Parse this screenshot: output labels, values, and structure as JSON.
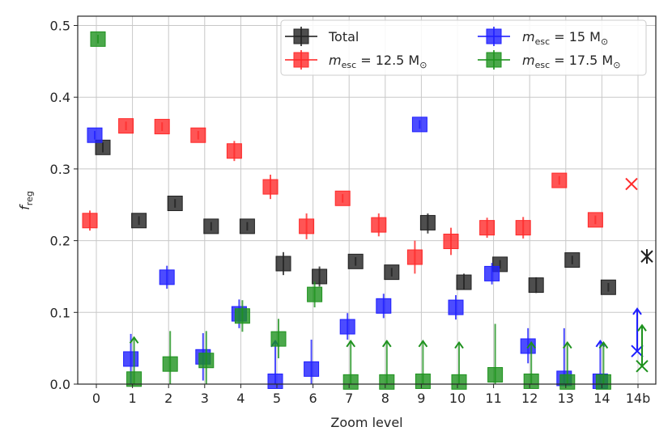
{
  "chart_data": {
    "type": "scatter",
    "xlabel": "Zoom level",
    "ylabel_main": "f",
    "ylabel_sub": "reg",
    "ylim": [
      0,
      0.5
    ],
    "categories": [
      "0",
      "1",
      "2",
      "3",
      "4",
      "5",
      "6",
      "7",
      "8",
      "9",
      "10",
      "11",
      "12",
      "13",
      "14",
      "14b"
    ],
    "yticks": [
      "0.0",
      "0.1",
      "0.2",
      "0.3",
      "0.4",
      "0.5"
    ],
    "grid": true,
    "legend_position": "top-right",
    "legend": [
      {
        "key": "total",
        "label": "Total"
      },
      {
        "key": "m15",
        "label_main": "m",
        "label_sub": "esc",
        "label_rest": " = 15 M",
        "label_sym": "⊙"
      },
      {
        "key": "m125",
        "label_main": "m",
        "label_sub": "esc",
        "label_rest": " = 12.5 M",
        "label_sym": "⊙"
      },
      {
        "key": "m175",
        "label_main": "m",
        "label_sub": "esc",
        "label_rest": " = 17.5 M",
        "label_sym": "⊙"
      }
    ],
    "series": [
      {
        "key": "total",
        "color": "#222222",
        "points": [
          {
            "i": 0,
            "y": 0.33,
            "lo": 0.323,
            "hi": 0.337
          },
          {
            "i": 1,
            "y": 0.228,
            "lo": 0.222,
            "hi": 0.234
          },
          {
            "i": 2,
            "y": 0.252,
            "lo": 0.246,
            "hi": 0.258
          },
          {
            "i": 3,
            "y": 0.22,
            "lo": 0.214,
            "hi": 0.226
          },
          {
            "i": 4,
            "y": 0.22,
            "lo": 0.214,
            "hi": 0.226
          },
          {
            "i": 5,
            "y": 0.168,
            "lo": 0.152,
            "hi": 0.184
          },
          {
            "i": 6,
            "y": 0.15,
            "lo": 0.136,
            "hi": 0.164
          },
          {
            "i": 7,
            "y": 0.171,
            "lo": 0.165,
            "hi": 0.177
          },
          {
            "i": 8,
            "y": 0.156,
            "lo": 0.15,
            "hi": 0.162
          },
          {
            "i": 9,
            "y": 0.225,
            "lo": 0.21,
            "hi": 0.238
          },
          {
            "i": 10,
            "y": 0.142,
            "lo": 0.132,
            "hi": 0.154
          },
          {
            "i": 11,
            "y": 0.167,
            "lo": 0.161,
            "hi": 0.173
          },
          {
            "i": 12,
            "y": 0.138,
            "lo": 0.127,
            "hi": 0.149
          },
          {
            "i": 13,
            "y": 0.173,
            "lo": 0.167,
            "hi": 0.179
          },
          {
            "i": 14,
            "y": 0.135,
            "lo": 0.129,
            "hi": 0.141
          }
        ],
        "special": {
          "i": 15,
          "y": 0.178,
          "marker": "x"
        }
      },
      {
        "key": "m125",
        "color": "#ff2a2a",
        "points": [
          {
            "i": 0,
            "y": 0.228,
            "lo": 0.214,
            "hi": 0.242
          },
          {
            "i": 1,
            "y": 0.36,
            "lo": 0.354,
            "hi": 0.366
          },
          {
            "i": 2,
            "y": 0.359,
            "lo": 0.353,
            "hi": 0.365
          },
          {
            "i": 3,
            "y": 0.347,
            "lo": 0.341,
            "hi": 0.353
          },
          {
            "i": 4,
            "y": 0.325,
            "lo": 0.311,
            "hi": 0.339
          },
          {
            "i": 5,
            "y": 0.275,
            "lo": 0.258,
            "hi": 0.292
          },
          {
            "i": 6,
            "y": 0.22,
            "lo": 0.202,
            "hi": 0.238
          },
          {
            "i": 7,
            "y": 0.259,
            "lo": 0.253,
            "hi": 0.265
          },
          {
            "i": 8,
            "y": 0.222,
            "lo": 0.206,
            "hi": 0.238
          },
          {
            "i": 9,
            "y": 0.177,
            "lo": 0.154,
            "hi": 0.2
          },
          {
            "i": 10,
            "y": 0.199,
            "lo": 0.18,
            "hi": 0.218
          },
          {
            "i": 11,
            "y": 0.218,
            "lo": 0.204,
            "hi": 0.232
          },
          {
            "i": 12,
            "y": 0.218,
            "lo": 0.203,
            "hi": 0.233
          },
          {
            "i": 13,
            "y": 0.284,
            "lo": 0.278,
            "hi": 0.29
          },
          {
            "i": 14,
            "y": 0.229,
            "lo": 0.223,
            "hi": 0.235
          }
        ],
        "special": {
          "i": 15,
          "y": 0.279,
          "marker": "x"
        }
      },
      {
        "key": "m15",
        "color": "#1f1fff",
        "points": [
          {
            "i": 0,
            "y": 0.347,
            "lo": 0.341,
            "hi": 0.353
          },
          {
            "i": 1,
            "y": 0.035,
            "lo": 0.0,
            "hi": 0.07
          },
          {
            "i": 2,
            "y": 0.149,
            "lo": 0.133,
            "hi": 0.165
          },
          {
            "i": 3,
            "y": 0.038,
            "lo": 0.005,
            "hi": 0.071
          },
          {
            "i": 4,
            "y": 0.098,
            "lo": 0.078,
            "hi": 0.118
          },
          {
            "i": 5,
            "y": 0.004,
            "lo": 0.0,
            "hi": 0.06,
            "arrow": true
          },
          {
            "i": 6,
            "y": 0.021,
            "lo": 0.0,
            "hi": 0.062
          },
          {
            "i": 7,
            "y": 0.08,
            "lo": 0.062,
            "hi": 0.099
          },
          {
            "i": 8,
            "y": 0.109,
            "lo": 0.092,
            "hi": 0.126
          },
          {
            "i": 9,
            "y": 0.362,
            "lo": 0.356,
            "hi": 0.368
          },
          {
            "i": 10,
            "y": 0.107,
            "lo": 0.09,
            "hi": 0.124
          },
          {
            "i": 11,
            "y": 0.154,
            "lo": 0.139,
            "hi": 0.169
          },
          {
            "i": 12,
            "y": 0.053,
            "lo": 0.029,
            "hi": 0.078
          },
          {
            "i": 13,
            "y": 0.008,
            "lo": 0.0,
            "hi": 0.078
          },
          {
            "i": 14,
            "y": 0.004,
            "lo": 0.0,
            "hi": 0.06,
            "arrow": true
          }
        ],
        "special": {
          "i": 15,
          "y": 0.046,
          "marker": "x",
          "arrow_hi": 0.105
        }
      },
      {
        "key": "m175",
        "color": "#1e921e",
        "points": [
          {
            "i": 0,
            "y": 0.481,
            "lo": 0.475,
            "hi": 0.487
          },
          {
            "i": 1,
            "y": 0.007,
            "lo": 0.0,
            "hi": 0.065,
            "arrow": true
          },
          {
            "i": 2,
            "y": 0.028,
            "lo": 0.0,
            "hi": 0.074
          },
          {
            "i": 3,
            "y": 0.033,
            "lo": 0.0,
            "hi": 0.074
          },
          {
            "i": 4,
            "y": 0.095,
            "lo": 0.073,
            "hi": 0.117
          },
          {
            "i": 5,
            "y": 0.063,
            "lo": 0.036,
            "hi": 0.091
          },
          {
            "i": 6,
            "y": 0.125,
            "lo": 0.107,
            "hi": 0.143
          },
          {
            "i": 7,
            "y": 0.003,
            "lo": 0.0,
            "hi": 0.06,
            "arrow": true
          },
          {
            "i": 8,
            "y": 0.003,
            "lo": 0.0,
            "hi": 0.06,
            "arrow": true
          },
          {
            "i": 9,
            "y": 0.004,
            "lo": 0.0,
            "hi": 0.06,
            "arrow": true
          },
          {
            "i": 10,
            "y": 0.003,
            "lo": 0.0,
            "hi": 0.058,
            "arrow": true
          },
          {
            "i": 11,
            "y": 0.013,
            "lo": 0.0,
            "hi": 0.084
          },
          {
            "i": 12,
            "y": 0.004,
            "lo": 0.0,
            "hi": 0.058,
            "arrow": true
          },
          {
            "i": 13,
            "y": 0.003,
            "lo": 0.0,
            "hi": 0.058,
            "arrow": true
          },
          {
            "i": 14,
            "y": 0.003,
            "lo": 0.0,
            "hi": 0.058,
            "arrow": true
          }
        ],
        "special": {
          "i": 15,
          "y": 0.025,
          "marker": "x",
          "arrow_hi": 0.082
        }
      }
    ]
  }
}
